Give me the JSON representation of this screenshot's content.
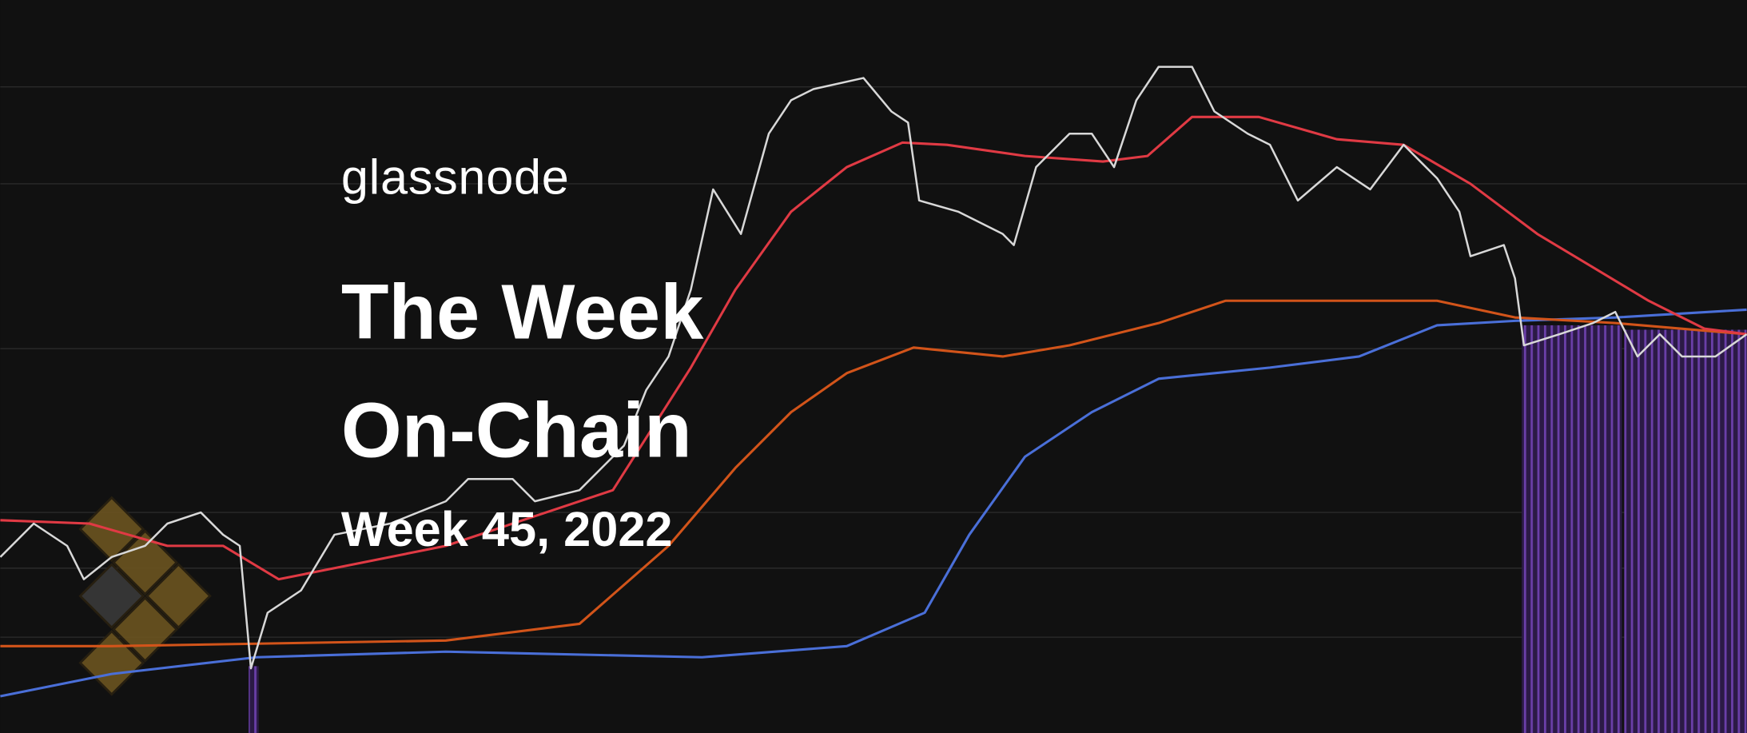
{
  "header": {
    "brand": "glassnode",
    "title_line_1": "The Week",
    "title_line_2": "On-Chain",
    "subtitle": "Week 45, 2022"
  }
}
